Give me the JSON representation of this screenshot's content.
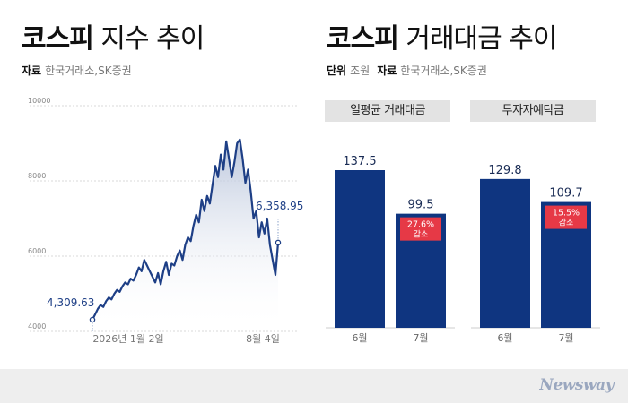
{
  "left": {
    "title_bold": "코스피",
    "title_light": "지수 추이",
    "source_label": "자료",
    "source_value": "한국거래소,SK증권",
    "chart_data": {
      "type": "area",
      "yticks": [
        "10000",
        "8000",
        "6000",
        "4000"
      ],
      "ylim": [
        4000,
        10000
      ],
      "xtick_labels": [
        "2026년 1월 2일",
        "8월 4일"
      ],
      "start_label": "4,309.63",
      "end_label": "6,358.95",
      "values": [
        4309.63,
        4450,
        4600,
        4700,
        4650,
        4800,
        4900,
        4850,
        5000,
        5100,
        5050,
        5200,
        5300,
        5250,
        5400,
        5350,
        5500,
        5700,
        5600,
        5900,
        5750,
        5600,
        5450,
        5300,
        5550,
        5250,
        5600,
        5850,
        5500,
        5800,
        5750,
        6000,
        6150,
        5900,
        6300,
        6500,
        6400,
        6800,
        7100,
        6900,
        7500,
        7200,
        7600,
        7400,
        7900,
        8400,
        8100,
        8700,
        8300,
        9050,
        8600,
        8100,
        8500,
        9000,
        9100,
        8600,
        7950,
        8300,
        7700,
        7000,
        7200,
        6500,
        6900,
        6600,
        7000,
        6300,
        5900,
        5500,
        6358.95
      ]
    }
  },
  "right": {
    "title_bold": "코스피",
    "title_light": "거래대금 추이",
    "unit_label": "단위",
    "unit_value": "조원",
    "source_label": "자료",
    "source_value": "한국거래소,SK증권",
    "chart_data": [
      {
        "type": "bar",
        "title": "일평균 거래대금",
        "categories": [
          "6월",
          "7월"
        ],
        "values": [
          137.5,
          99.5
        ],
        "value_labels": [
          "137.5",
          "99.5"
        ],
        "badge_pct": "27.6%",
        "badge_text": "감소"
      },
      {
        "type": "bar",
        "title": "투자자예탁금",
        "categories": [
          "6월",
          "7월"
        ],
        "values": [
          129.8,
          109.7
        ],
        "value_labels": [
          "129.8",
          "109.7"
        ],
        "badge_pct": "15.5%",
        "badge_text": "감소"
      }
    ]
  },
  "colors": {
    "bar": "#0f3580",
    "line": "#1e3f86",
    "badge": "#e63946",
    "area_top": "#b7c3da"
  },
  "logo": "Newsway"
}
